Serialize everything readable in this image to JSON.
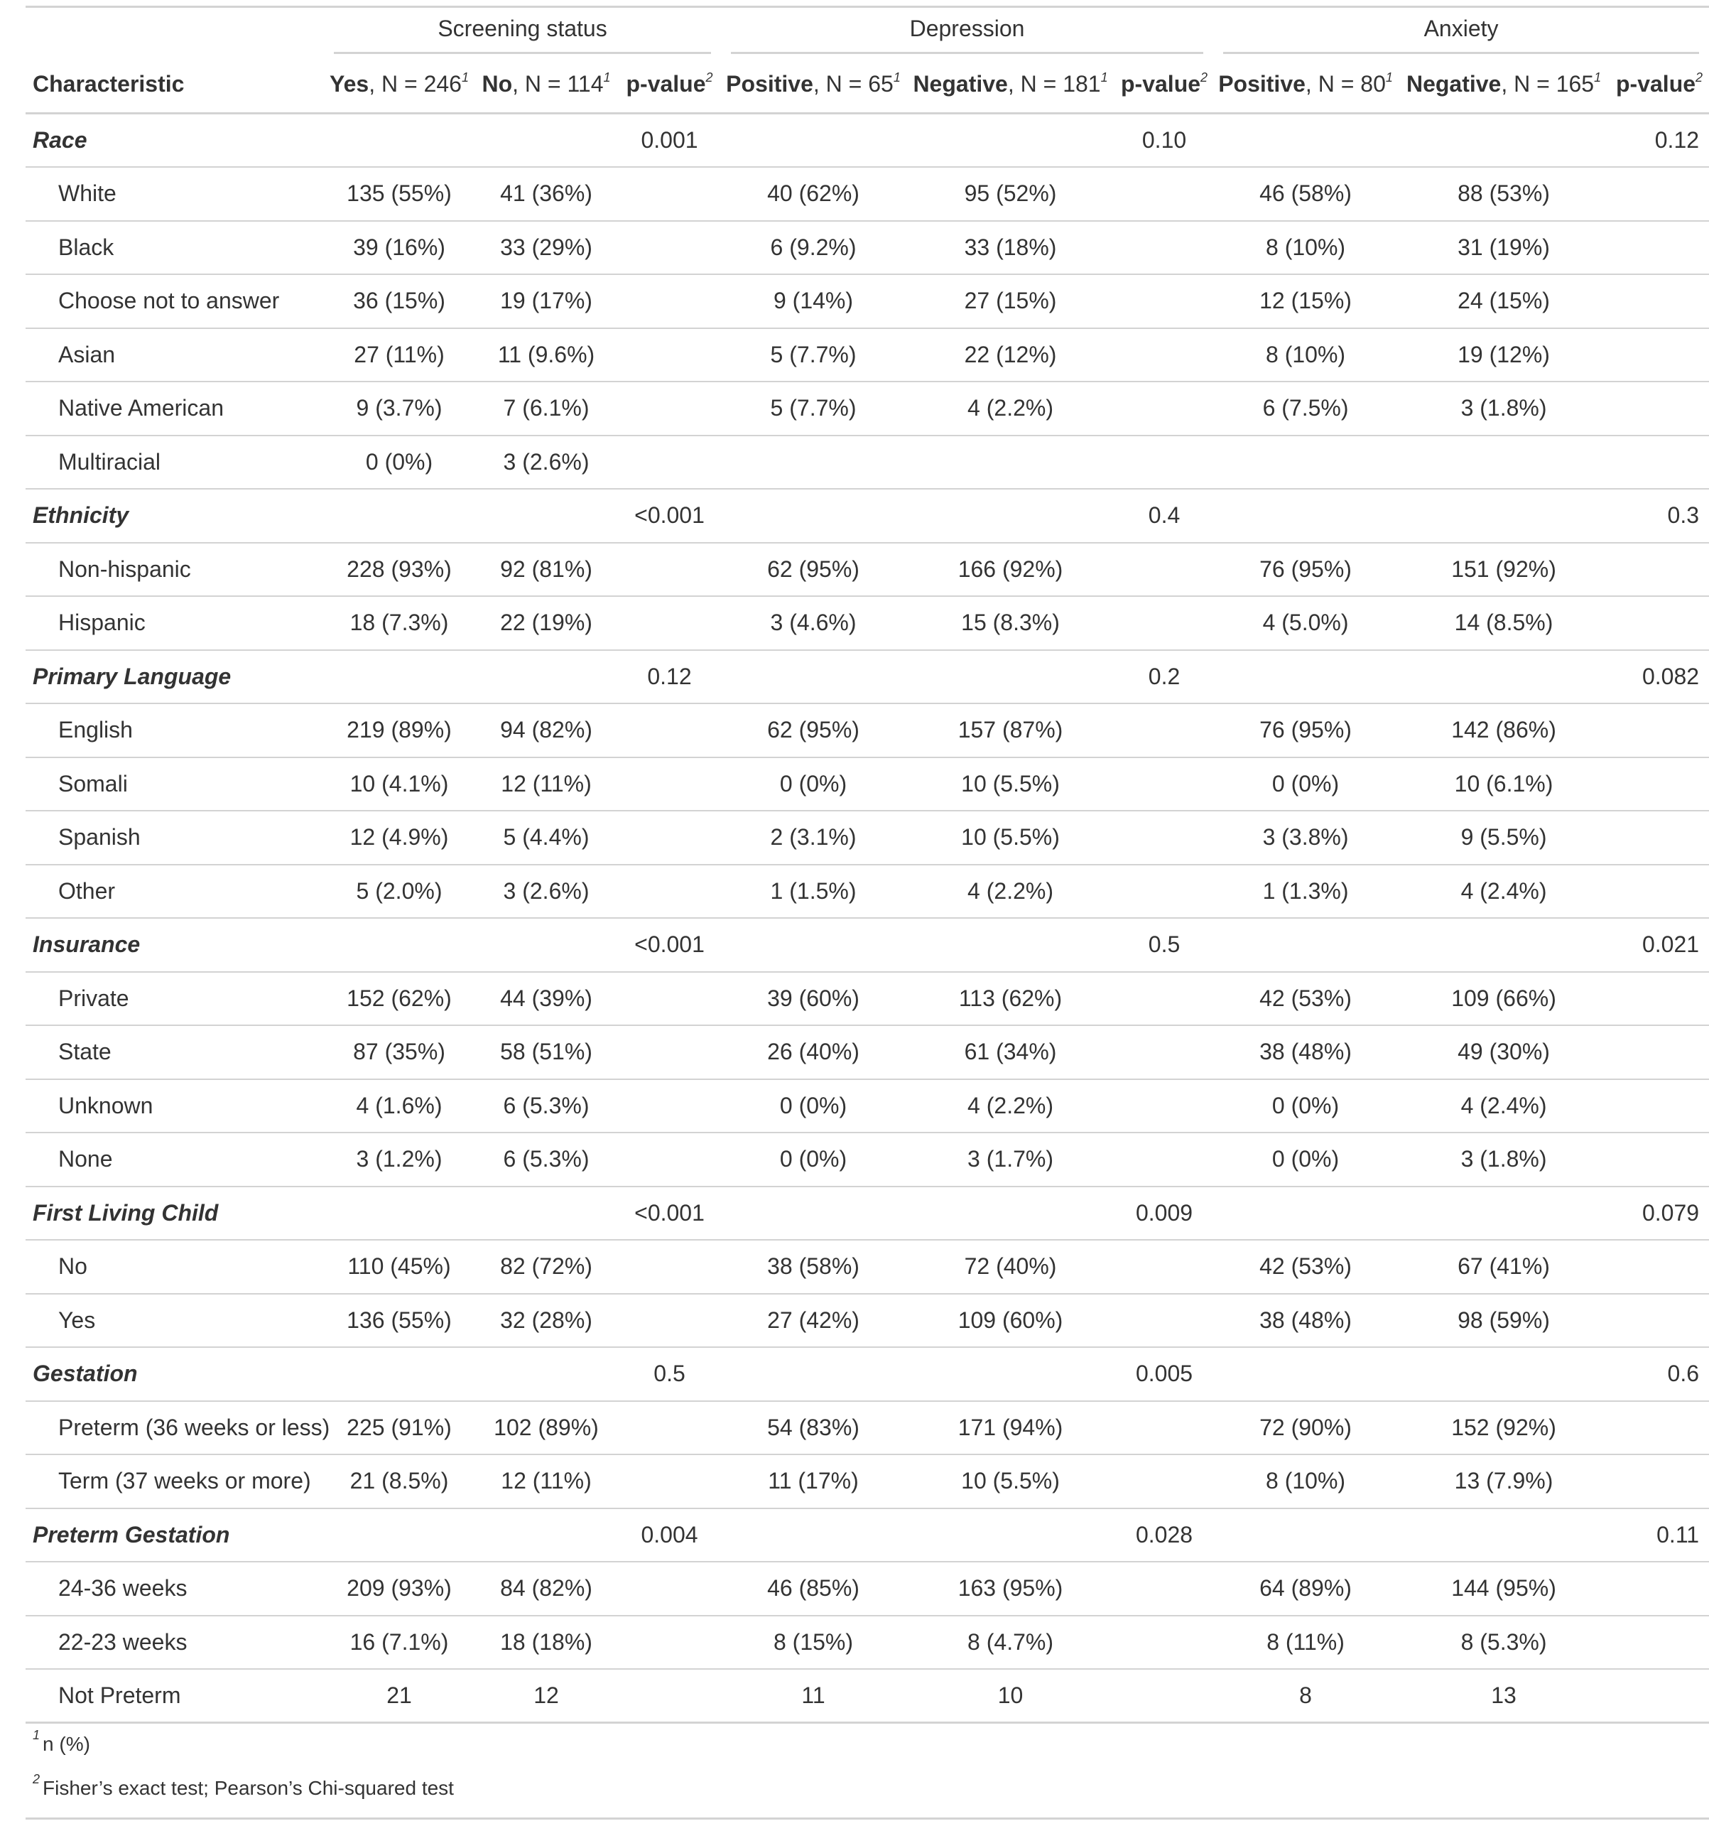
{
  "spanners": {
    "screening": "Screening status",
    "depression": "Depression",
    "anxiety": "Anxiety"
  },
  "columns": {
    "characteristic": "Characteristic",
    "yes": {
      "bold": "Yes",
      "rest": ", N = 246",
      "sup": "1"
    },
    "no": {
      "bold": "No",
      "rest": ", N = 114",
      "sup": "1"
    },
    "p1": {
      "bold": "p-value",
      "sup": "2"
    },
    "dep_pos": {
      "bold": "Positive",
      "rest": ", N = 65",
      "sup": "1"
    },
    "dep_neg": {
      "bold": "Negative",
      "rest": ", N = 181",
      "sup": "1"
    },
    "p2": {
      "bold": "p-value",
      "sup": "2"
    },
    "anx_pos": {
      "bold": "Positive",
      "rest": ", N = 80",
      "sup": "1"
    },
    "anx_neg": {
      "bold": "Negative",
      "rest": ", N = 165",
      "sup": "1"
    },
    "p3": {
      "bold": "p-value",
      "sup": "2"
    }
  },
  "rows": [
    {
      "type": "var",
      "label": "Race",
      "p1": "0.001",
      "p1b": true,
      "p2": "0.10",
      "p2b": false,
      "p3": "0.12",
      "p3b": false
    },
    {
      "type": "lvl",
      "label": "White",
      "c": [
        "135 (55%)",
        "41 (36%)",
        "40 (62%)",
        "95 (52%)",
        "46 (58%)",
        "88 (53%)"
      ]
    },
    {
      "type": "lvl",
      "label": "Black",
      "c": [
        "39 (16%)",
        "33 (29%)",
        "6 (9.2%)",
        "33 (18%)",
        "8 (10%)",
        "31 (19%)"
      ]
    },
    {
      "type": "lvl",
      "label": "Choose not to answer",
      "c": [
        "36 (15%)",
        "19 (17%)",
        "9 (14%)",
        "27 (15%)",
        "12 (15%)",
        "24 (15%)"
      ]
    },
    {
      "type": "lvl",
      "label": "Asian",
      "c": [
        "27 (11%)",
        "11 (9.6%)",
        "5 (7.7%)",
        "22 (12%)",
        "8 (10%)",
        "19 (12%)"
      ]
    },
    {
      "type": "lvl",
      "label": "Native American",
      "c": [
        "9 (3.7%)",
        "7 (6.1%)",
        "5 (7.7%)",
        "4 (2.2%)",
        "6 (7.5%)",
        "3 (1.8%)"
      ]
    },
    {
      "type": "lvl",
      "label": "Multiracial",
      "c": [
        "0 (0%)",
        "3 (2.6%)",
        "",
        "",
        "",
        ""
      ]
    },
    {
      "type": "var",
      "label": "Ethnicity",
      "p1": "<0.001",
      "p1b": true,
      "p2": "0.4",
      "p2b": false,
      "p3": "0.3",
      "p3b": false
    },
    {
      "type": "lvl",
      "label": "Non-hispanic",
      "c": [
        "228 (93%)",
        "92 (81%)",
        "62 (95%)",
        "166 (92%)",
        "76 (95%)",
        "151 (92%)"
      ]
    },
    {
      "type": "lvl",
      "label": "Hispanic",
      "c": [
        "18 (7.3%)",
        "22 (19%)",
        "3 (4.6%)",
        "15 (8.3%)",
        "4 (5.0%)",
        "14 (8.5%)"
      ]
    },
    {
      "type": "var",
      "label": "Primary Language",
      "p1": "0.12",
      "p1b": false,
      "p2": "0.2",
      "p2b": false,
      "p3": "0.082",
      "p3b": false
    },
    {
      "type": "lvl",
      "label": "English",
      "c": [
        "219 (89%)",
        "94 (82%)",
        "62 (95%)",
        "157 (87%)",
        "76 (95%)",
        "142 (86%)"
      ]
    },
    {
      "type": "lvl",
      "label": "Somali",
      "c": [
        "10 (4.1%)",
        "12 (11%)",
        "0 (0%)",
        "10 (5.5%)",
        "0 (0%)",
        "10 (6.1%)"
      ]
    },
    {
      "type": "lvl",
      "label": "Spanish",
      "c": [
        "12 (4.9%)",
        "5 (4.4%)",
        "2 (3.1%)",
        "10 (5.5%)",
        "3 (3.8%)",
        "9 (5.5%)"
      ]
    },
    {
      "type": "lvl",
      "label": "Other",
      "c": [
        "5 (2.0%)",
        "3 (2.6%)",
        "1 (1.5%)",
        "4 (2.2%)",
        "1 (1.3%)",
        "4 (2.4%)"
      ]
    },
    {
      "type": "var",
      "label": "Insurance",
      "p1": "<0.001",
      "p1b": true,
      "p2": "0.5",
      "p2b": false,
      "p3": "0.021",
      "p3b": true
    },
    {
      "type": "lvl",
      "label": "Private",
      "c": [
        "152 (62%)",
        "44 (39%)",
        "39 (60%)",
        "113 (62%)",
        "42 (53%)",
        "109 (66%)"
      ]
    },
    {
      "type": "lvl",
      "label": "State",
      "c": [
        "87 (35%)",
        "58 (51%)",
        "26 (40%)",
        "61 (34%)",
        "38 (48%)",
        "49 (30%)"
      ]
    },
    {
      "type": "lvl",
      "label": "Unknown",
      "c": [
        "4 (1.6%)",
        "6 (5.3%)",
        "0 (0%)",
        "4 (2.2%)",
        "0 (0%)",
        "4 (2.4%)"
      ]
    },
    {
      "type": "lvl",
      "label": "None",
      "c": [
        "3 (1.2%)",
        "6 (5.3%)",
        "0 (0%)",
        "3 (1.7%)",
        "0 (0%)",
        "3 (1.8%)"
      ]
    },
    {
      "type": "var",
      "label": "First Living Child",
      "p1": "<0.001",
      "p1b": true,
      "p2": "0.009",
      "p2b": true,
      "p3": "0.079",
      "p3b": false
    },
    {
      "type": "lvl",
      "label": "No",
      "c": [
        "110 (45%)",
        "82 (72%)",
        "38 (58%)",
        "72 (40%)",
        "42 (53%)",
        "67 (41%)"
      ]
    },
    {
      "type": "lvl",
      "label": "Yes",
      "c": [
        "136 (55%)",
        "32 (28%)",
        "27 (42%)",
        "109 (60%)",
        "38 (48%)",
        "98 (59%)"
      ]
    },
    {
      "type": "var",
      "label": "Gestation",
      "p1": "0.5",
      "p1b": false,
      "p2": "0.005",
      "p2b": true,
      "p3": "0.6",
      "p3b": false
    },
    {
      "type": "lvl",
      "label": "Preterm (36 weeks or less)",
      "c": [
        "225 (91%)",
        "102 (89%)",
        "54 (83%)",
        "171 (94%)",
        "72 (90%)",
        "152 (92%)"
      ]
    },
    {
      "type": "lvl",
      "label": "Term (37 weeks or more)",
      "c": [
        "21 (8.5%)",
        "12 (11%)",
        "11 (17%)",
        "10 (5.5%)",
        "8 (10%)",
        "13 (7.9%)"
      ]
    },
    {
      "type": "var",
      "label": "Preterm Gestation",
      "p1": "0.004",
      "p1b": true,
      "p2": "0.028",
      "p2b": true,
      "p3": "0.11",
      "p3b": false
    },
    {
      "type": "lvl",
      "label": "24-36 weeks",
      "c": [
        "209 (93%)",
        "84 (82%)",
        "46 (85%)",
        "163 (95%)",
        "64 (89%)",
        "144 (95%)"
      ]
    },
    {
      "type": "lvl",
      "label": "22-23 weeks",
      "c": [
        "16 (7.1%)",
        "18 (18%)",
        "8 (15%)",
        "8 (4.7%)",
        "8 (11%)",
        "8 (5.3%)"
      ]
    },
    {
      "type": "lvl",
      "label": "Not Preterm",
      "c": [
        "21",
        "12",
        "11",
        "10",
        "8",
        "13"
      ]
    }
  ],
  "footnotes": [
    {
      "mark": "1",
      "text": "n (%)"
    },
    {
      "mark": "2",
      "text": "Fisher’s exact test; Pearson’s Chi-squared test"
    }
  ]
}
